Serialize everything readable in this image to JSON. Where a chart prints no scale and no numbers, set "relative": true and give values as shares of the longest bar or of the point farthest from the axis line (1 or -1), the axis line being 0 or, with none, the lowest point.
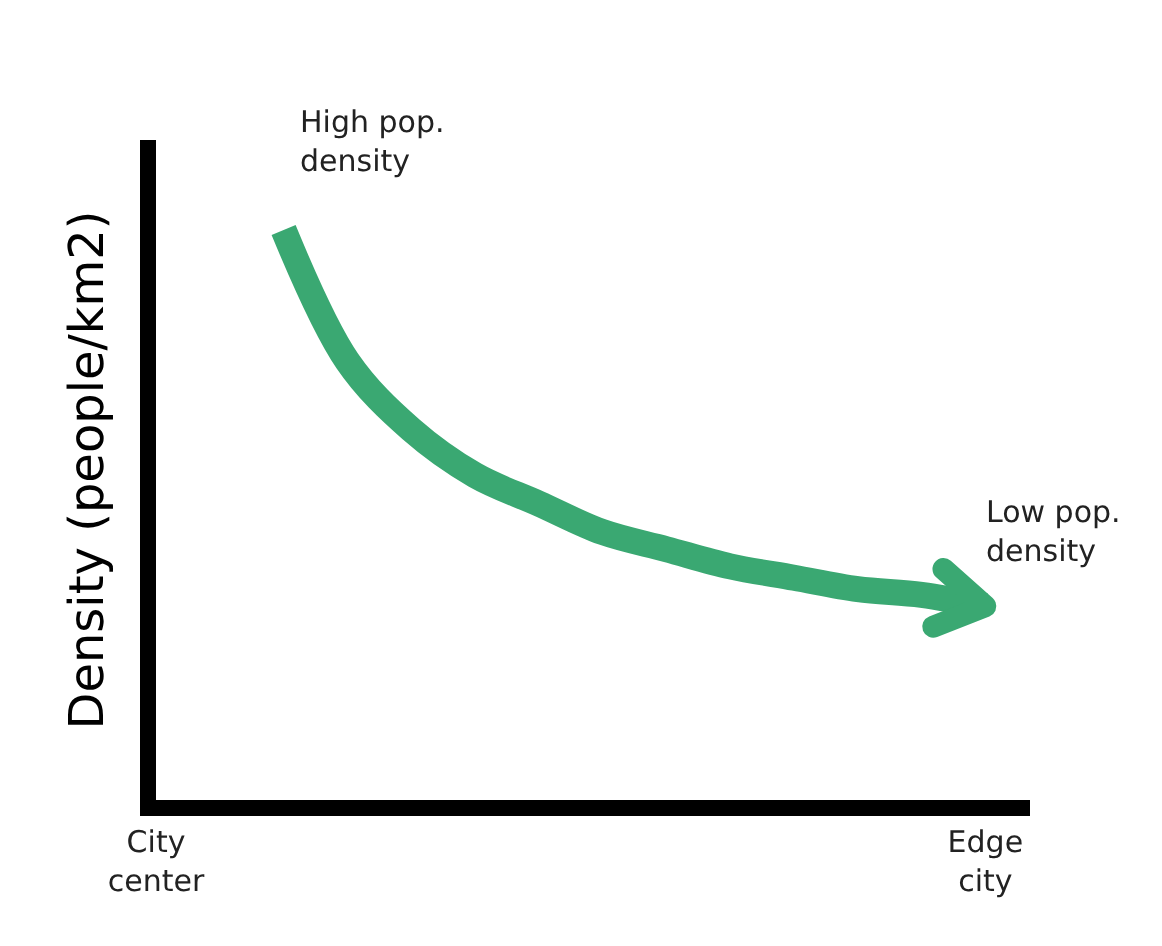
{
  "chart_data": {
    "type": "line",
    "relative": true,
    "ylabel": "Density (people/km2)",
    "categories": [
      "City center",
      null,
      null,
      null,
      null,
      null,
      null,
      null,
      null,
      null,
      null,
      null,
      null,
      "Edge city"
    ],
    "series": [
      {
        "color": "#3aa872",
        "values": [
          null,
          null,
          1.0,
          0.77,
          0.65,
          0.57,
          0.52,
          0.47,
          0.44,
          0.41,
          0.39,
          0.37,
          0.36,
          0.34
        ]
      }
    ],
    "annotations": [
      "High pop. density",
      "Low pop. density"
    ]
  }
}
